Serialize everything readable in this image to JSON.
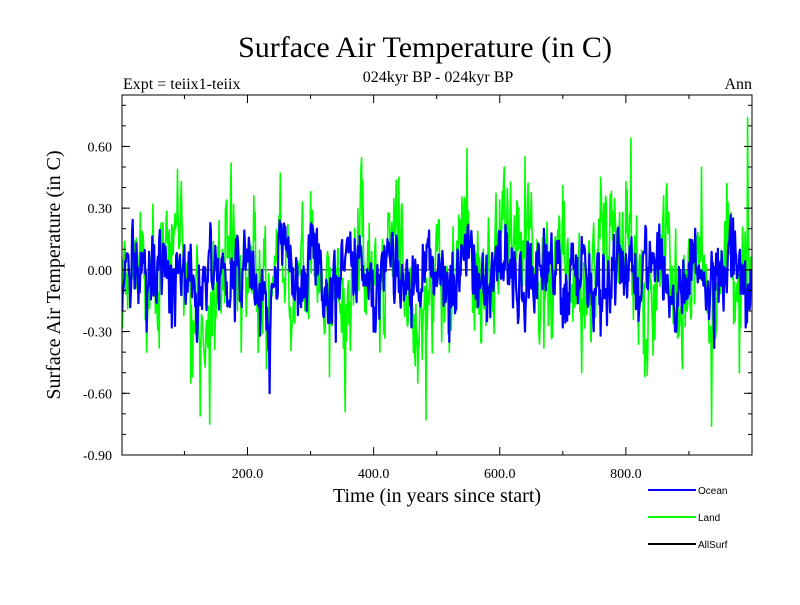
{
  "chart_data": {
    "type": "line",
    "title": "Surface Air Temperature (in C)",
    "subtitle": "024kyr BP - 024kyr BP",
    "left_label": "Expt = teiix1-teiix",
    "right_label": "Ann",
    "xlabel": "Time (in years since start)",
    "ylabel": "Surface Air Temperature (in C)",
    "xlim": [
      1,
      1000
    ],
    "ylim": [
      -0.9,
      0.85
    ],
    "xticks": [
      200,
      400,
      600,
      800
    ],
    "xtick_labels": [
      "200.0",
      "400.0",
      "600.0",
      "800.0"
    ],
    "yticks": [
      -0.9,
      -0.6,
      -0.3,
      0.0,
      0.3,
      0.6
    ],
    "ytick_labels": [
      "-0.90",
      "-0.60",
      "-0.30",
      "0.00",
      "0.30",
      "0.60"
    ],
    "grid": false,
    "zero_line": true,
    "legend_position": "bottom-right",
    "series": [
      {
        "name": "Land",
        "color": "#00ff00",
        "keypoints": [
          [
            1,
            -0.25
          ],
          [
            20,
            0.12
          ],
          [
            30,
            0.28
          ],
          [
            40,
            -0.4
          ],
          [
            50,
            0.32
          ],
          [
            60,
            -0.38
          ],
          [
            80,
            0.22
          ],
          [
            95,
            0.43
          ],
          [
            110,
            -0.55
          ],
          [
            125,
            -0.71
          ],
          [
            140,
            -0.75
          ],
          [
            160,
            0.1
          ],
          [
            174,
            0.52
          ],
          [
            190,
            -0.4
          ],
          [
            210,
            0.36
          ],
          [
            230,
            -0.48
          ],
          [
            252,
            0.47
          ],
          [
            270,
            -0.3
          ],
          [
            300,
            0.38
          ],
          [
            330,
            -0.52
          ],
          [
            355,
            -0.69
          ],
          [
            380,
            0.5
          ],
          [
            410,
            -0.4
          ],
          [
            440,
            0.45
          ],
          [
            470,
            -0.55
          ],
          [
            483,
            -0.73
          ],
          [
            500,
            0.22
          ],
          [
            520,
            -0.4
          ],
          [
            548,
            0.59
          ],
          [
            570,
            -0.35
          ],
          [
            600,
            0.34
          ],
          [
            640,
            0.55
          ],
          [
            670,
            -0.38
          ],
          [
            700,
            0.41
          ],
          [
            730,
            -0.5
          ],
          [
            760,
            0.45
          ],
          [
            800,
            0.43
          ],
          [
            808,
            0.64
          ],
          [
            830,
            -0.52
          ],
          [
            860,
            0.36
          ],
          [
            890,
            -0.48
          ],
          [
            920,
            0.5
          ],
          [
            936,
            -0.76
          ],
          [
            960,
            0.42
          ],
          [
            980,
            -0.5
          ],
          [
            993,
            0.74
          ],
          [
            1000,
            -0.1
          ]
        ]
      },
      {
        "name": "Ocean",
        "color": "#0000ff",
        "keypoints": [
          [
            1,
            -0.2
          ],
          [
            20,
            0.08
          ],
          [
            40,
            -0.3
          ],
          [
            60,
            0.15
          ],
          [
            80,
            -0.28
          ],
          [
            100,
            0.12
          ],
          [
            120,
            -0.35
          ],
          [
            150,
            0.05
          ],
          [
            180,
            -0.25
          ],
          [
            200,
            0.1
          ],
          [
            220,
            -0.32
          ],
          [
            235,
            -0.6
          ],
          [
            250,
            0.18
          ],
          [
            280,
            -0.22
          ],
          [
            310,
            0.2
          ],
          [
            340,
            -0.35
          ],
          [
            370,
            0.15
          ],
          [
            400,
            -0.3
          ],
          [
            430,
            0.18
          ],
          [
            460,
            -0.28
          ],
          [
            490,
            0.1
          ],
          [
            520,
            -0.35
          ],
          [
            550,
            0.22
          ],
          [
            580,
            -0.25
          ],
          [
            610,
            0.15
          ],
          [
            640,
            -0.3
          ],
          [
            670,
            0.2
          ],
          [
            700,
            -0.28
          ],
          [
            730,
            0.16
          ],
          [
            760,
            -0.32
          ],
          [
            790,
            0.12
          ],
          [
            820,
            -0.25
          ],
          [
            850,
            0.18
          ],
          [
            880,
            -0.3
          ],
          [
            910,
            0.2
          ],
          [
            940,
            -0.38
          ],
          [
            970,
            0.25
          ],
          [
            990,
            -0.28
          ],
          [
            1000,
            -0.1
          ]
        ]
      },
      {
        "name": "AllSurf",
        "color": "#000000",
        "keypoints": []
      }
    ]
  }
}
